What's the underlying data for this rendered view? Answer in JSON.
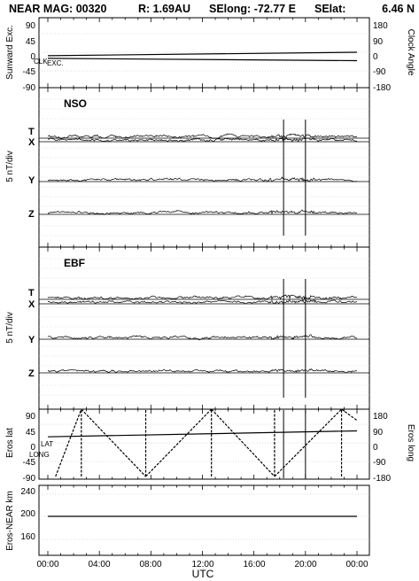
{
  "header": {
    "mission": "NEAR MAG: 00320",
    "distance": "R: 1.69AU",
    "selong": "SElong:  -72.77 E",
    "selat": "SElat:",
    "selat_value": "6.46 N"
  },
  "chart_data": [
    {
      "type": "line",
      "name_id": "angles",
      "ylabel": "Sunward Exc.",
      "ylabel_right": "Clock Angle",
      "yticks": [
        "90",
        "45",
        "0",
        "-45",
        "-90"
      ],
      "yticks_right": [
        "180",
        "90",
        "0",
        "-90",
        "-180"
      ],
      "ylim": [
        -90,
        90
      ],
      "ylim_right": [
        -180,
        180
      ],
      "annotations": [
        "CLK",
        "EXC."
      ],
      "series": [
        {
          "role": "clock",
          "x_hours": [
            0,
            24
          ],
          "values": [
            -9,
            0
          ]
        },
        {
          "role": "exc",
          "x_hours": [
            0,
            24
          ],
          "values": [
            -16,
            -22
          ]
        }
      ]
    },
    {
      "type": "line",
      "name_id": "nso",
      "panel_label": "NSO",
      "ylabel": "5 nT/div",
      "traces": [
        "T",
        "X",
        "Y",
        "Z"
      ]
    },
    {
      "type": "line",
      "name_id": "ebf",
      "panel_label": "EBF",
      "ylabel": "5 nT/div",
      "traces": [
        "T",
        "X",
        "Y",
        "Z"
      ]
    },
    {
      "type": "line",
      "name_id": "eros",
      "ylabel": "Eros lat",
      "ylabel_right": "Eros long",
      "yticks": [
        "90",
        "45",
        "0",
        "-45",
        "-90"
      ],
      "yticks_right": [
        "180",
        "90",
        "0",
        "-90",
        "-180"
      ],
      "ylim": [
        -90,
        90
      ],
      "ylim_right": [
        -180,
        180
      ],
      "annotations": [
        "LAT",
        "LONG"
      ],
      "series": [
        {
          "role": "lat",
          "x_hours": [
            0,
            24
          ],
          "values": [
            16,
            32
          ]
        },
        {
          "role": "long_sawtooth",
          "x_hours": [
            0.6,
            2.6,
            7.6,
            12.7,
            17.6,
            22.8,
            24
          ],
          "values": [
            -180,
            180,
            -180,
            180,
            -180,
            180,
            120
          ]
        }
      ]
    },
    {
      "type": "line",
      "name_id": "range",
      "ylabel": "Eros-NEAR km",
      "yticks": [
        "240",
        "200",
        "160"
      ],
      "ylim": [
        120,
        260
      ],
      "series": [
        {
          "role": "range",
          "x_hours": [
            0,
            24
          ],
          "values": [
            200,
            200
          ]
        }
      ]
    }
  ],
  "x_axis": {
    "label": "UTC",
    "ticks": [
      "00:00",
      "04:00",
      "08:00",
      "12:00",
      "16:00",
      "20:00",
      "00:00"
    ],
    "range_hours": [
      0,
      24
    ]
  },
  "events_hours": [
    18.3,
    20.0
  ]
}
